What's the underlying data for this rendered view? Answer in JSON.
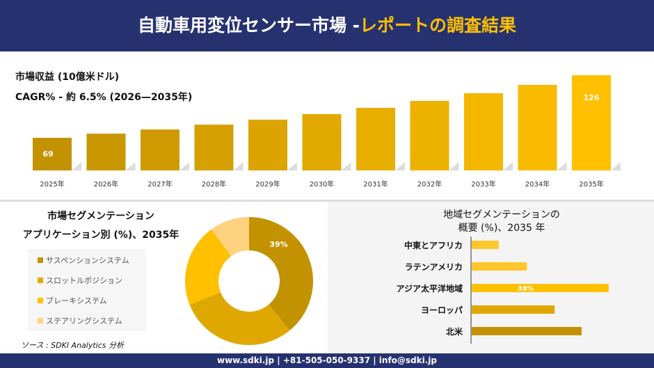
{
  "header": {
    "title_main": "自動車用変位センサー市場 -",
    "title_accent": "レポートの調査結果"
  },
  "colors": {
    "header_bg": "#263270",
    "accent": "#FFC000",
    "dark_gold": "#C39200"
  },
  "chart_data": [
    {
      "type": "bar",
      "title": "市場収益 (10億米ドル)",
      "subtitle": "CAGR% - 約 6.5% (2026—2035年)",
      "categories": [
        "2025年",
        "2026年",
        "2027年",
        "2028年",
        "2029年",
        "2030年",
        "2031年",
        "2032年",
        "2033年",
        "2034年",
        "2035年"
      ],
      "values": [
        69,
        72.8,
        76.6,
        81,
        85.5,
        90.6,
        96.3,
        102.6,
        109.6,
        117.2,
        126
      ],
      "data_labels": {
        "0": "69",
        "10": "126"
      }
    },
    {
      "type": "pie",
      "style": "donut",
      "title": "市場セグメンテーション",
      "subtitle": "アプリケーション別 (%)、2035年",
      "labels": [
        "サスペンションシステム",
        "スロットルポジション",
        "ブレーキシステム",
        "ステアリングシステム"
      ],
      "values": [
        39,
        30,
        21,
        10
      ],
      "colors": [
        "#C39200",
        "#DFA800",
        "#FFC000",
        "#FFD280"
      ],
      "data_labels": {
        "0": "39%"
      },
      "legend": "left"
    },
    {
      "type": "bar",
      "orientation": "horizontal",
      "title": "地域セグメンテーションの",
      "subtitle": "概要 (%)、2035 年",
      "categories": [
        "中東とアフリカ",
        "ラテンアメリカ",
        "アジア太平洋地域",
        "ヨーロッパ",
        "北米"
      ],
      "values": [
        7.5,
        15.3,
        38,
        23,
        30.5
      ],
      "colors": [
        "#FFC72C",
        "#FFC72C",
        "#FFC000",
        "#DFA800",
        "#C39200"
      ],
      "data_labels": {
        "2": "38%"
      }
    }
  ],
  "source": "ソース : SDKI Analytics 分析",
  "footer": "www.sdki.jp | +81-505-050-9337 | info@sdki.jp"
}
